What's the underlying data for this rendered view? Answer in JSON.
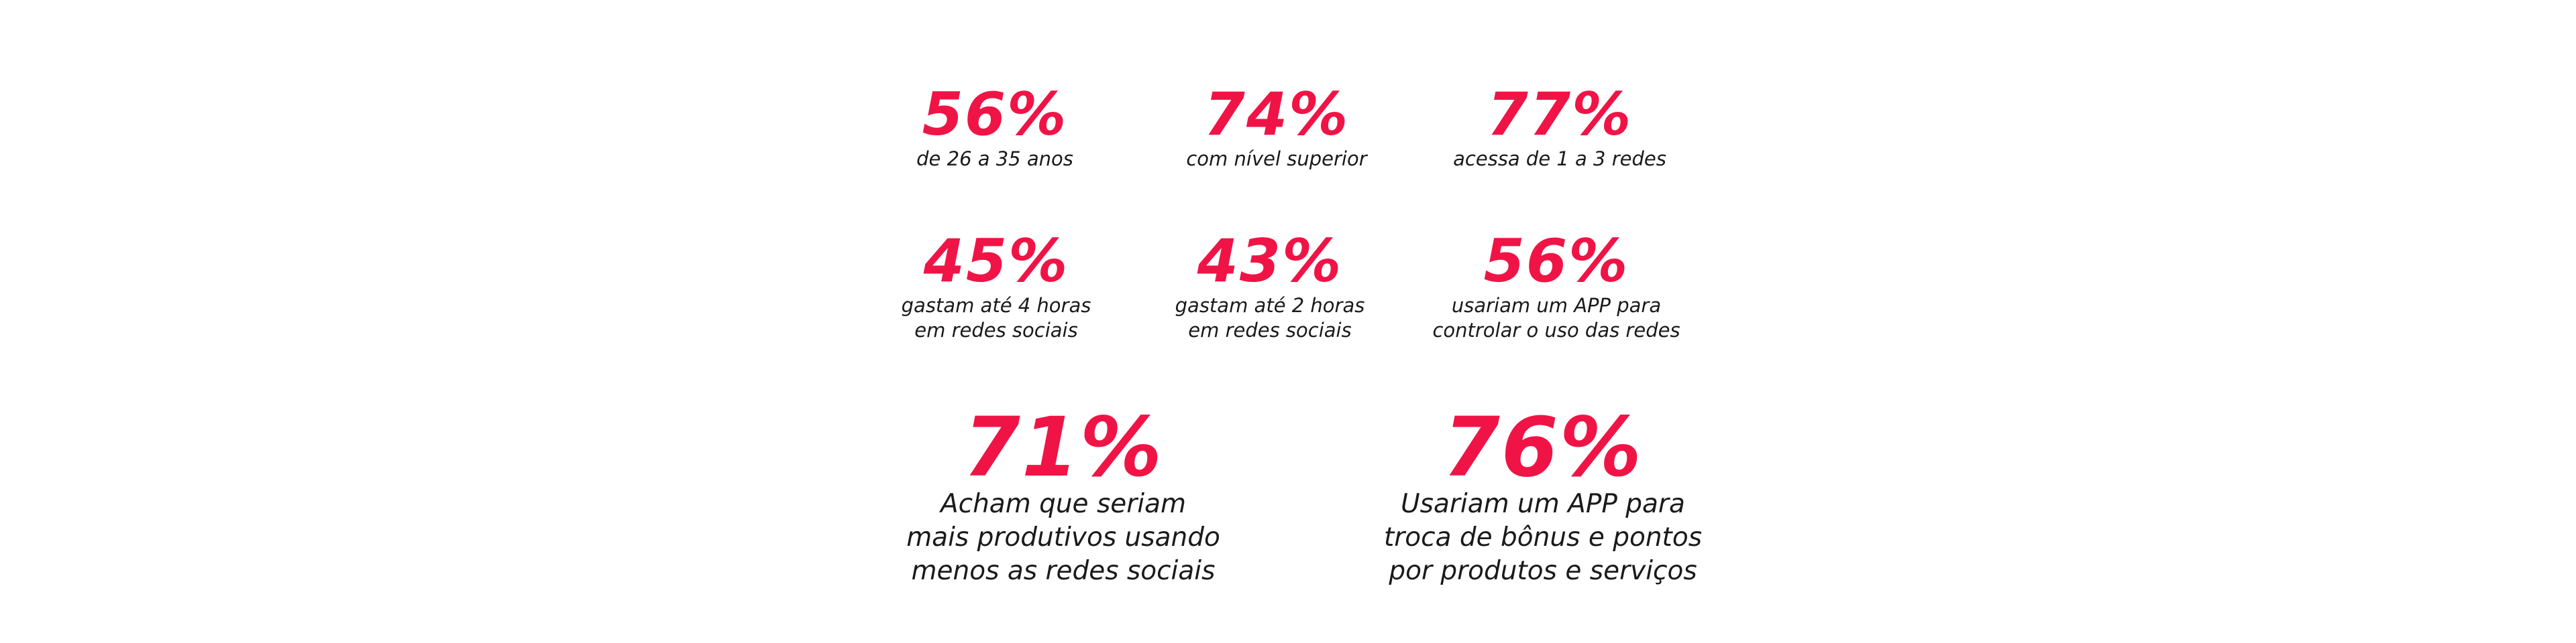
{
  "stats": [
    {
      "value": "56%",
      "lines": [
        "de 26 a 35 anos"
      ]
    },
    {
      "value": "74%",
      "lines": [
        "com nível superior"
      ]
    },
    {
      "value": "77%",
      "lines": [
        "acessa de 1 a 3 redes"
      ]
    },
    {
      "value": "45%",
      "lines": [
        "gastam até 4 horas",
        "em redes sociais"
      ]
    },
    {
      "value": "43%",
      "lines": [
        "gastam até 2 horas",
        "em redes sociais"
      ]
    },
    {
      "value": "56%",
      "lines": [
        "usariam um APP para",
        "controlar o uso das redes"
      ]
    }
  ],
  "highlights": [
    {
      "value": "71%",
      "lines": [
        "Acham que seriam",
        "mais produtivos usando",
        "menos as redes sociais"
      ]
    },
    {
      "value": "76%",
      "lines": [
        "Usariam um APP para",
        "troca de bônus e pontos",
        "por produtos e serviços"
      ]
    }
  ],
  "colors": {
    "accent": "#f01446",
    "text": "#1a1a1a",
    "background": "#ffffff"
  }
}
